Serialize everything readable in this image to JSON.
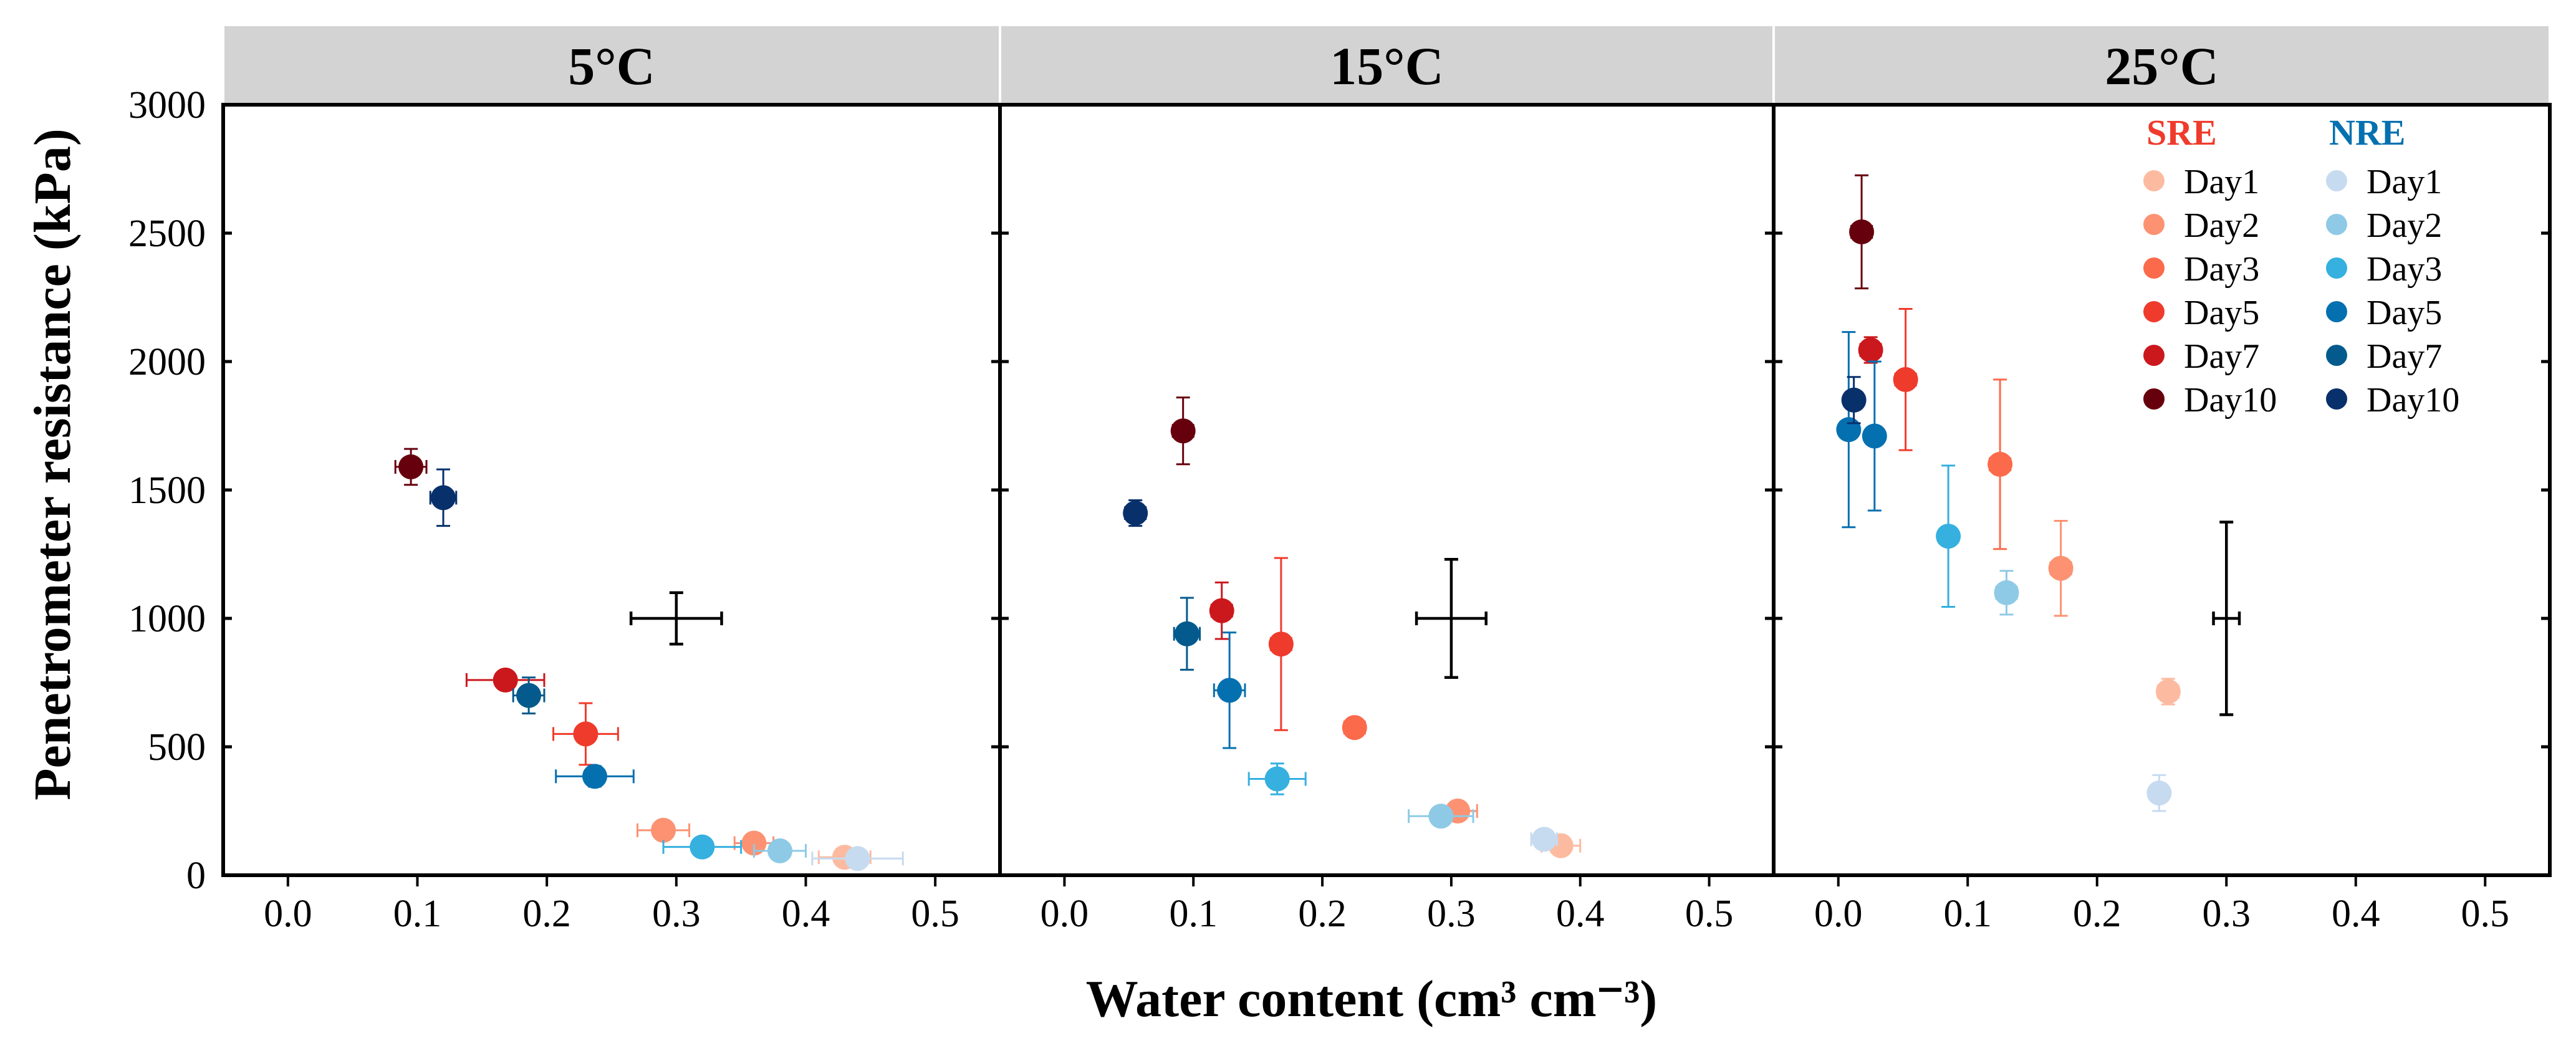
{
  "chart_data": {
    "type": "scatter",
    "ylabel": "Penetrometer resistance (kPa)",
    "xlabel": "Water content (cm³ cm⁻³)",
    "xlim": [
      -0.05,
      0.55
    ],
    "ylim": [
      0,
      3000
    ],
    "xticks": [
      "0.0",
      "0.1",
      "0.2",
      "0.3",
      "0.4",
      "0.5"
    ],
    "yticks": [
      "0",
      "500",
      "1000",
      "1500",
      "2000",
      "2500",
      "3000"
    ],
    "xtick_values": [
      0,
      0.1,
      0.2,
      0.3,
      0.4,
      0.5
    ],
    "ytick_values": [
      0,
      500,
      1000,
      1500,
      2000,
      2500,
      3000
    ],
    "legend": {
      "position": "top-right",
      "panel": "25°C",
      "groups": [
        {
          "title": "SRE",
          "color": "#ef3b2c",
          "entries": [
            {
              "label": "Day1",
              "color": "#fcbba1"
            },
            {
              "label": "Day2",
              "color": "#fc9272"
            },
            {
              "label": "Day3",
              "color": "#fb6a4a"
            },
            {
              "label": "Day5",
              "color": "#ef3b2c"
            },
            {
              "label": "Day7",
              "color": "#cb181d"
            },
            {
              "label": "Day10",
              "color": "#67000d"
            }
          ]
        },
        {
          "title": "NRE",
          "color": "#0570b0",
          "entries": [
            {
              "label": "Day1",
              "color": "#c6dbef"
            },
            {
              "label": "Day2",
              "color": "#8ecae6"
            },
            {
              "label": "Day3",
              "color": "#35b0df"
            },
            {
              "label": "Day5",
              "color": "#0570b0"
            },
            {
              "label": "Day7",
              "color": "#045a8d"
            },
            {
              "label": "Day10",
              "color": "#08306b"
            }
          ]
        }
      ]
    },
    "panels": [
      {
        "title": "5°C",
        "reference": {
          "x": 0.3,
          "y": 1000,
          "xerr": 0.035,
          "yerr": 100
        },
        "series": [
          {
            "group": "SRE",
            "day": "Day1",
            "color": "#fcbba1",
            "x": 0.43,
            "y": 70,
            "xerr": 0.02,
            "yerr": 25
          },
          {
            "group": "SRE",
            "day": "Day2",
            "color": "#fc9272",
            "x": 0.29,
            "y": 175,
            "xerr": 0.02,
            "yerr": 25
          },
          {
            "group": "SRE",
            "day": "Day2b",
            "color": "#fc9272",
            "x": 0.36,
            "y": 125,
            "xerr": 0.015,
            "yerr": 25
          },
          {
            "group": "SRE",
            "day": "Day5",
            "color": "#ef3b2c",
            "x": 0.23,
            "y": 550,
            "xerr": 0.025,
            "yerr": 120
          },
          {
            "group": "SRE",
            "day": "Day7",
            "color": "#cb181d",
            "x": 0.168,
            "y": 760,
            "xerr": 0.03,
            "yerr": 30
          },
          {
            "group": "SRE",
            "day": "Day10",
            "color": "#67000d",
            "x": 0.095,
            "y": 1590,
            "xerr": 0.012,
            "yerr": 70
          },
          {
            "group": "NRE",
            "day": "Day1",
            "color": "#c6dbef",
            "x": 0.44,
            "y": 65,
            "xerr": 0.035,
            "yerr": 20
          },
          {
            "group": "NRE",
            "day": "Day2",
            "color": "#8ecae6",
            "x": 0.38,
            "y": 95,
            "xerr": 0.02,
            "yerr": 20
          },
          {
            "group": "NRE",
            "day": "Day3",
            "color": "#35b0df",
            "x": 0.32,
            "y": 110,
            "xerr": 0.03,
            "yerr": 20
          },
          {
            "group": "NRE",
            "day": "Day5",
            "color": "#0570b0",
            "x": 0.237,
            "y": 385,
            "xerr": 0.03,
            "yerr": 40
          },
          {
            "group": "NRE",
            "day": "Day7",
            "color": "#045a8d",
            "x": 0.186,
            "y": 700,
            "xerr": 0.012,
            "yerr": 70
          },
          {
            "group": "NRE",
            "day": "Day10",
            "color": "#08306b",
            "x": 0.12,
            "y": 1470,
            "xerr": 0.01,
            "yerr": 110
          }
        ]
      },
      {
        "title": "15°C",
        "reference": {
          "x": 0.3,
          "y": 1000,
          "xerr": 0.027,
          "yerr": 230
        },
        "series": [
          {
            "group": "SRE",
            "day": "Day1",
            "color": "#fcbba1",
            "x": 0.385,
            "y": 115,
            "xerr": 0.015,
            "yerr": 25
          },
          {
            "group": "SRE",
            "day": "Day2",
            "color": "#fc9272",
            "x": 0.305,
            "y": 250,
            "xerr": 0.015,
            "yerr": 25
          },
          {
            "group": "SRE",
            "day": "Day3",
            "color": "#fb6a4a",
            "x": 0.225,
            "y": 575,
            "xerr": 0.008,
            "yerr": 30
          },
          {
            "group": "SRE",
            "day": "Day5",
            "color": "#ef3b2c",
            "x": 0.168,
            "y": 900,
            "xerr": 0.008,
            "yerr": 335
          },
          {
            "group": "SRE",
            "day": "Day7",
            "color": "#cb181d",
            "x": 0.122,
            "y": 1030,
            "xerr": 0.008,
            "yerr": 110
          },
          {
            "group": "SRE",
            "day": "Day10",
            "color": "#67000d",
            "x": 0.092,
            "y": 1730,
            "xerr": 0.008,
            "yerr": 130
          },
          {
            "group": "NRE",
            "day": "Day1",
            "color": "#c6dbef",
            "x": 0.372,
            "y": 140,
            "xerr": 0.01,
            "yerr": 25
          },
          {
            "group": "NRE",
            "day": "Day2",
            "color": "#8ecae6",
            "x": 0.292,
            "y": 230,
            "xerr": 0.025,
            "yerr": 25
          },
          {
            "group": "NRE",
            "day": "Day3",
            "color": "#35b0df",
            "x": 0.165,
            "y": 375,
            "xerr": 0.022,
            "yerr": 60
          },
          {
            "group": "NRE",
            "day": "Day5",
            "color": "#0570b0",
            "x": 0.128,
            "y": 720,
            "xerr": 0.012,
            "yerr": 225
          },
          {
            "group": "NRE",
            "day": "Day7",
            "color": "#045a8d",
            "x": 0.095,
            "y": 940,
            "xerr": 0.01,
            "yerr": 140
          },
          {
            "group": "NRE",
            "day": "Day10",
            "color": "#08306b",
            "x": 0.055,
            "y": 1410,
            "xerr": 0.008,
            "yerr": 50
          }
        ]
      },
      {
        "title": "25°C",
        "reference": {
          "x": 0.3,
          "y": 1000,
          "xerr": 0.01,
          "yerr": 375
        },
        "series": [
          {
            "group": "SRE",
            "day": "Day1",
            "color": "#fcbba1",
            "x": 0.255,
            "y": 715,
            "xerr": 0.008,
            "yerr": 50
          },
          {
            "group": "SRE",
            "day": "Day2",
            "color": "#fc9272",
            "x": 0.172,
            "y": 1195,
            "xerr": 0.008,
            "yerr": 185
          },
          {
            "group": "SRE",
            "day": "Day3",
            "color": "#fb6a4a",
            "x": 0.125,
            "y": 1600,
            "xerr": 0.008,
            "yerr": 330
          },
          {
            "group": "SRE",
            "day": "Day5",
            "color": "#ef3b2c",
            "x": 0.052,
            "y": 1930,
            "xerr": 0.008,
            "yerr": 275
          },
          {
            "group": "SRE",
            "day": "Day7",
            "color": "#cb181d",
            "x": 0.025,
            "y": 2045,
            "xerr": 0.008,
            "yerr": 50
          },
          {
            "group": "SRE",
            "day": "Day10",
            "color": "#67000d",
            "x": 0.018,
            "y": 2505,
            "xerr": 0.008,
            "yerr": 220
          },
          {
            "group": "NRE",
            "day": "Day1",
            "color": "#c6dbef",
            "x": 0.248,
            "y": 320,
            "xerr": 0.006,
            "yerr": 70
          },
          {
            "group": "NRE",
            "day": "Day2",
            "color": "#8ecae6",
            "x": 0.13,
            "y": 1100,
            "xerr": 0.008,
            "yerr": 85
          },
          {
            "group": "NRE",
            "day": "Day3",
            "color": "#35b0df",
            "x": 0.085,
            "y": 1320,
            "xerr": 0.006,
            "yerr": 275
          },
          {
            "group": "NRE",
            "day": "Day5",
            "color": "#0570b0",
            "x": 0.008,
            "y": 1735,
            "xerr": 0.006,
            "yerr": 380
          },
          {
            "group": "NRE",
            "day": "Day5b",
            "color": "#0570b0",
            "x": 0.028,
            "y": 1710,
            "xerr": 0.006,
            "yerr": 290
          },
          {
            "group": "NRE",
            "day": "Day10",
            "color": "#08306b",
            "x": 0.012,
            "y": 1850,
            "xerr": 0.006,
            "yerr": 90
          }
        ]
      }
    ]
  }
}
